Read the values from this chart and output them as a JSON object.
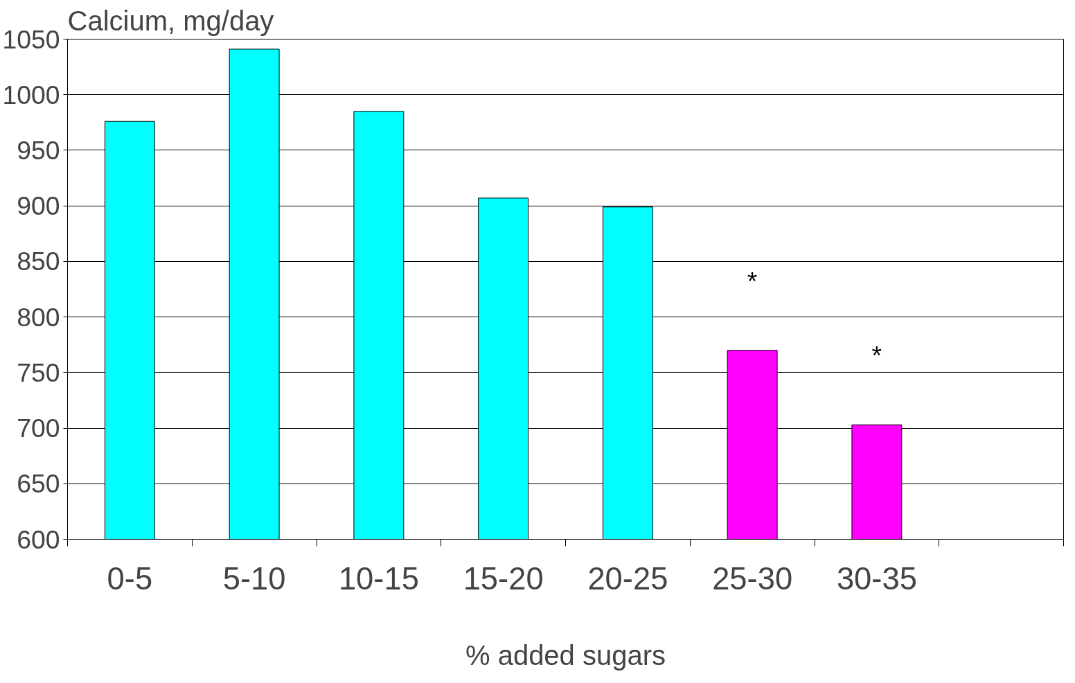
{
  "chart_data": {
    "type": "bar",
    "ylabel": "Calcium, mg/day",
    "xlabel": "% added sugars",
    "categories": [
      "0-5",
      "5-10",
      "10-15",
      "15-20",
      "20-25",
      "25-30",
      "30-35",
      null
    ],
    "values": [
      976,
      1041,
      985,
      907,
      899,
      770,
      703,
      null
    ],
    "colors": [
      "#00ffff",
      "#00ffff",
      "#00ffff",
      "#00ffff",
      "#00ffff",
      "#ff00ff",
      "#ff00ff",
      "#00ffff"
    ],
    "ylim": [
      600,
      1050
    ],
    "yticks": [
      600,
      650,
      700,
      750,
      800,
      850,
      900,
      950,
      1000,
      1050
    ],
    "grid": "y",
    "annotations": [
      "*",
      "*"
    ]
  }
}
